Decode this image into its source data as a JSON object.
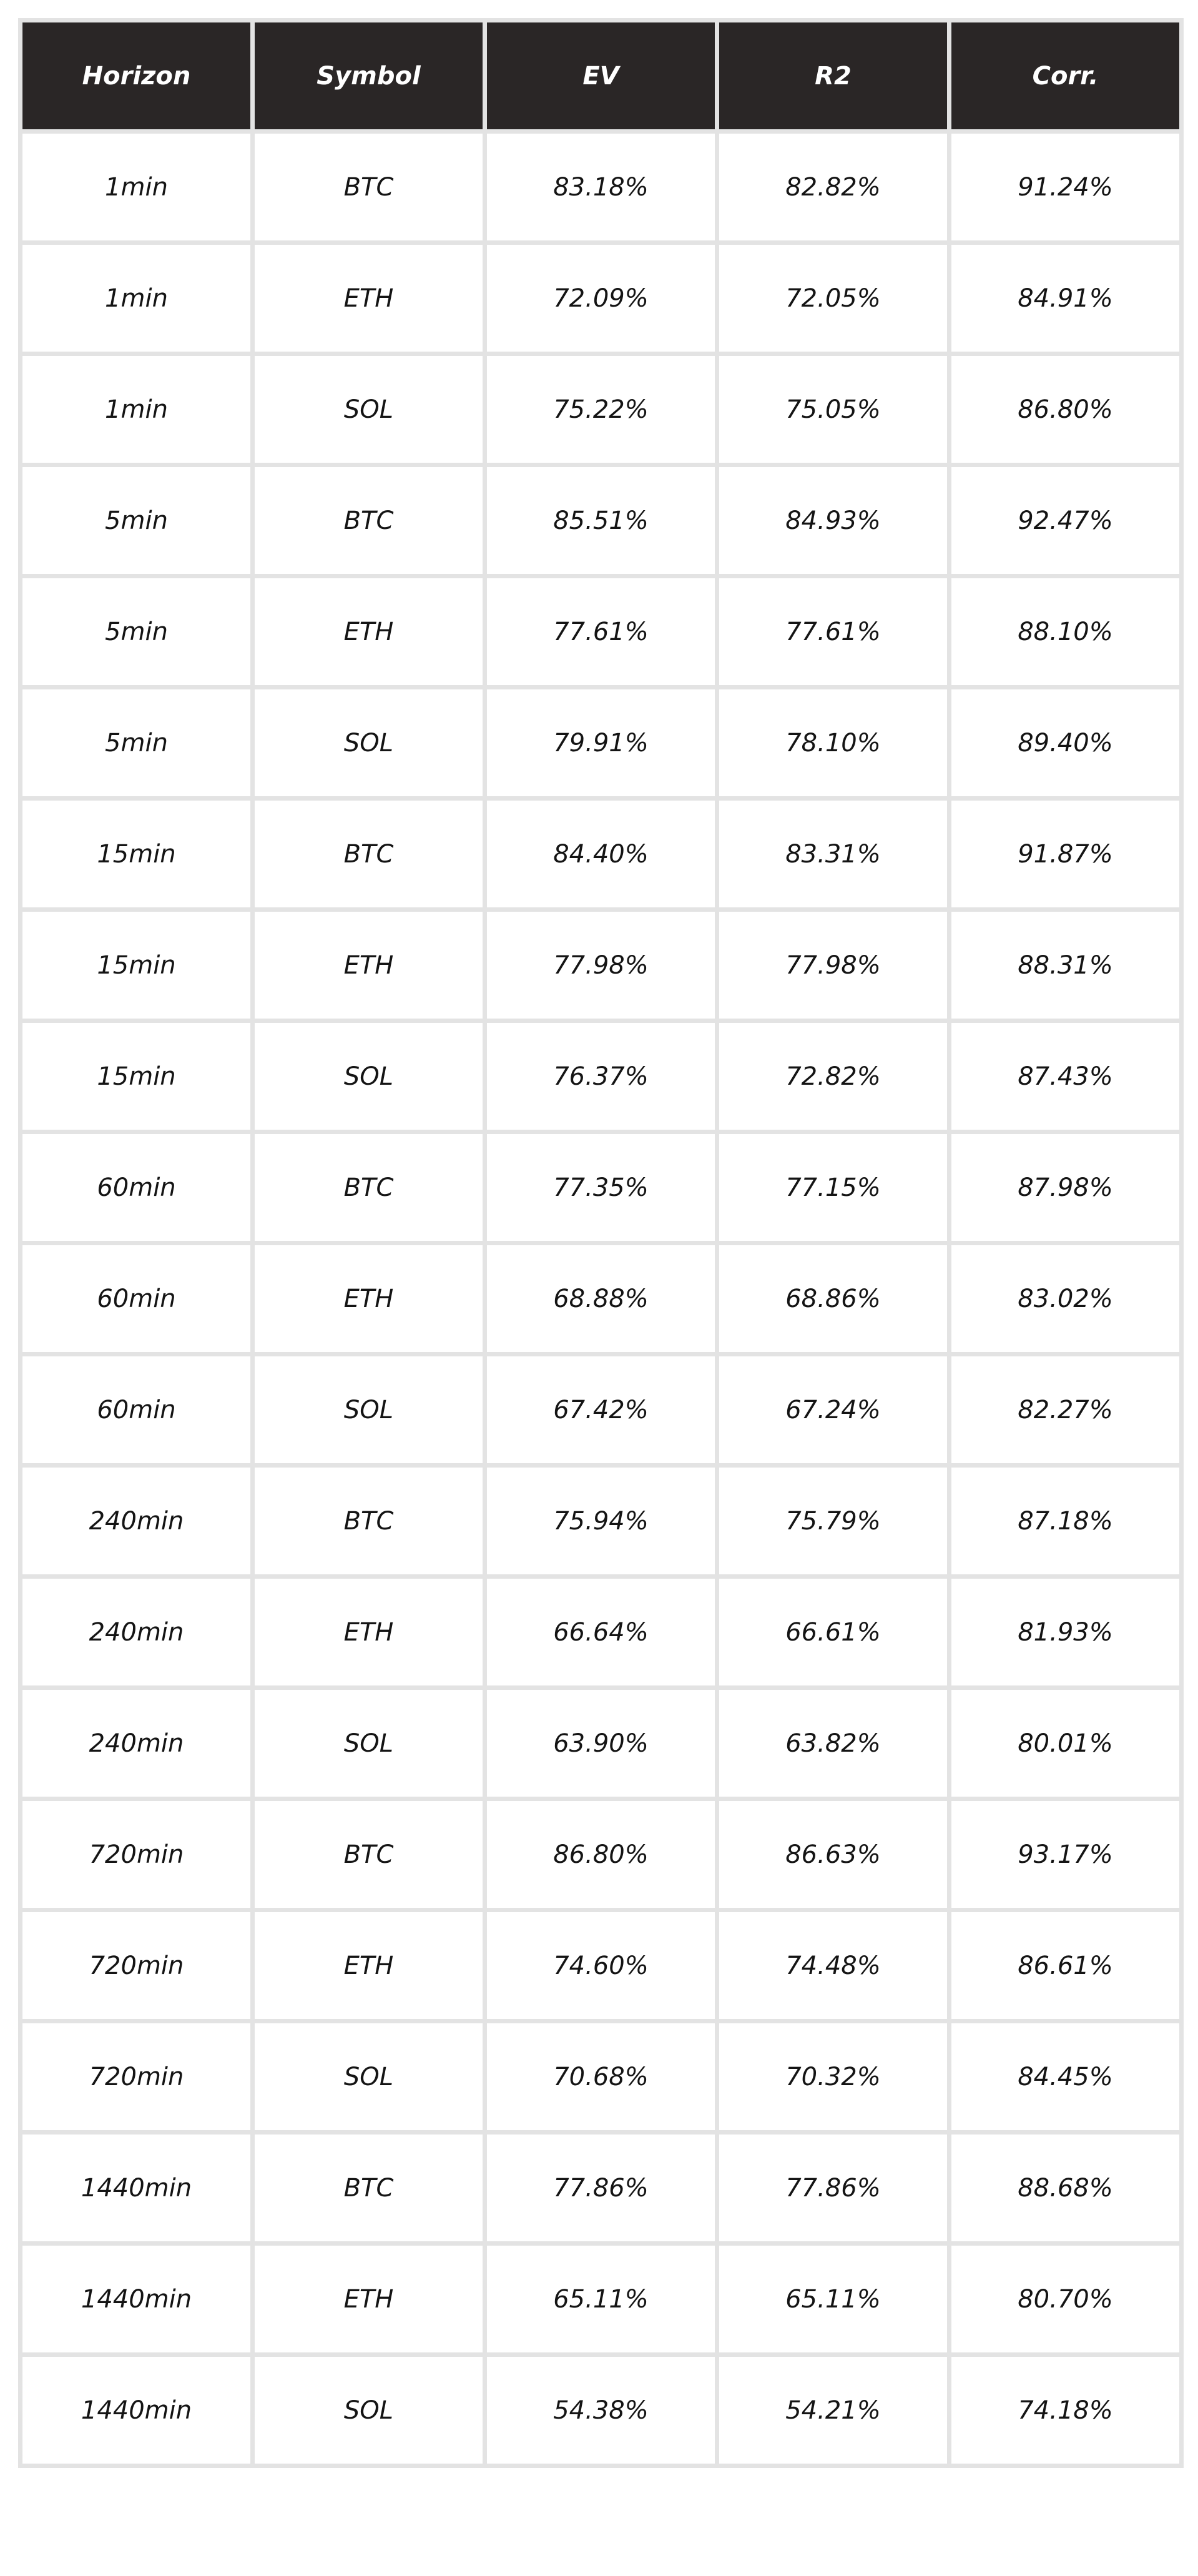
{
  "chart_data": {
    "type": "table",
    "columns": [
      "Horizon",
      "Symbol",
      "EV",
      "R2",
      "Corr."
    ],
    "rows": [
      [
        "1min",
        "BTC",
        "83.18%",
        "82.82%",
        "91.24%"
      ],
      [
        "1min",
        "ETH",
        "72.09%",
        "72.05%",
        "84.91%"
      ],
      [
        "1min",
        "SOL",
        "75.22%",
        "75.05%",
        "86.80%"
      ],
      [
        "5min",
        "BTC",
        "85.51%",
        "84.93%",
        "92.47%"
      ],
      [
        "5min",
        "ETH",
        "77.61%",
        "77.61%",
        "88.10%"
      ],
      [
        "5min",
        "SOL",
        "79.91%",
        "78.10%",
        "89.40%"
      ],
      [
        "15min",
        "BTC",
        "84.40%",
        "83.31%",
        "91.87%"
      ],
      [
        "15min",
        "ETH",
        "77.98%",
        "77.98%",
        "88.31%"
      ],
      [
        "15min",
        "SOL",
        "76.37%",
        "72.82%",
        "87.43%"
      ],
      [
        "60min",
        "BTC",
        "77.35%",
        "77.15%",
        "87.98%"
      ],
      [
        "60min",
        "ETH",
        "68.88%",
        "68.86%",
        "83.02%"
      ],
      [
        "60min",
        "SOL",
        "67.42%",
        "67.24%",
        "82.27%"
      ],
      [
        "240min",
        "BTC",
        "75.94%",
        "75.79%",
        "87.18%"
      ],
      [
        "240min",
        "ETH",
        "66.64%",
        "66.61%",
        "81.93%"
      ],
      [
        "240min",
        "SOL",
        "63.90%",
        "63.82%",
        "80.01%"
      ],
      [
        "720min",
        "BTC",
        "86.80%",
        "86.63%",
        "93.17%"
      ],
      [
        "720min",
        "ETH",
        "74.60%",
        "74.48%",
        "86.61%"
      ],
      [
        "720min",
        "SOL",
        "70.68%",
        "70.32%",
        "84.45%"
      ],
      [
        "1440min",
        "BTC",
        "77.86%",
        "77.86%",
        "88.68%"
      ],
      [
        "1440min",
        "ETH",
        "65.11%",
        "65.11%",
        "80.70%"
      ],
      [
        "1440min",
        "SOL",
        "54.38%",
        "54.21%",
        "74.18%"
      ]
    ]
  },
  "colors": {
    "header_background": "#2a2626",
    "header_text": "#ffffff",
    "cell_background": "#ffffff",
    "cell_text": "#141414",
    "grid_line": "#e3e3e3"
  }
}
